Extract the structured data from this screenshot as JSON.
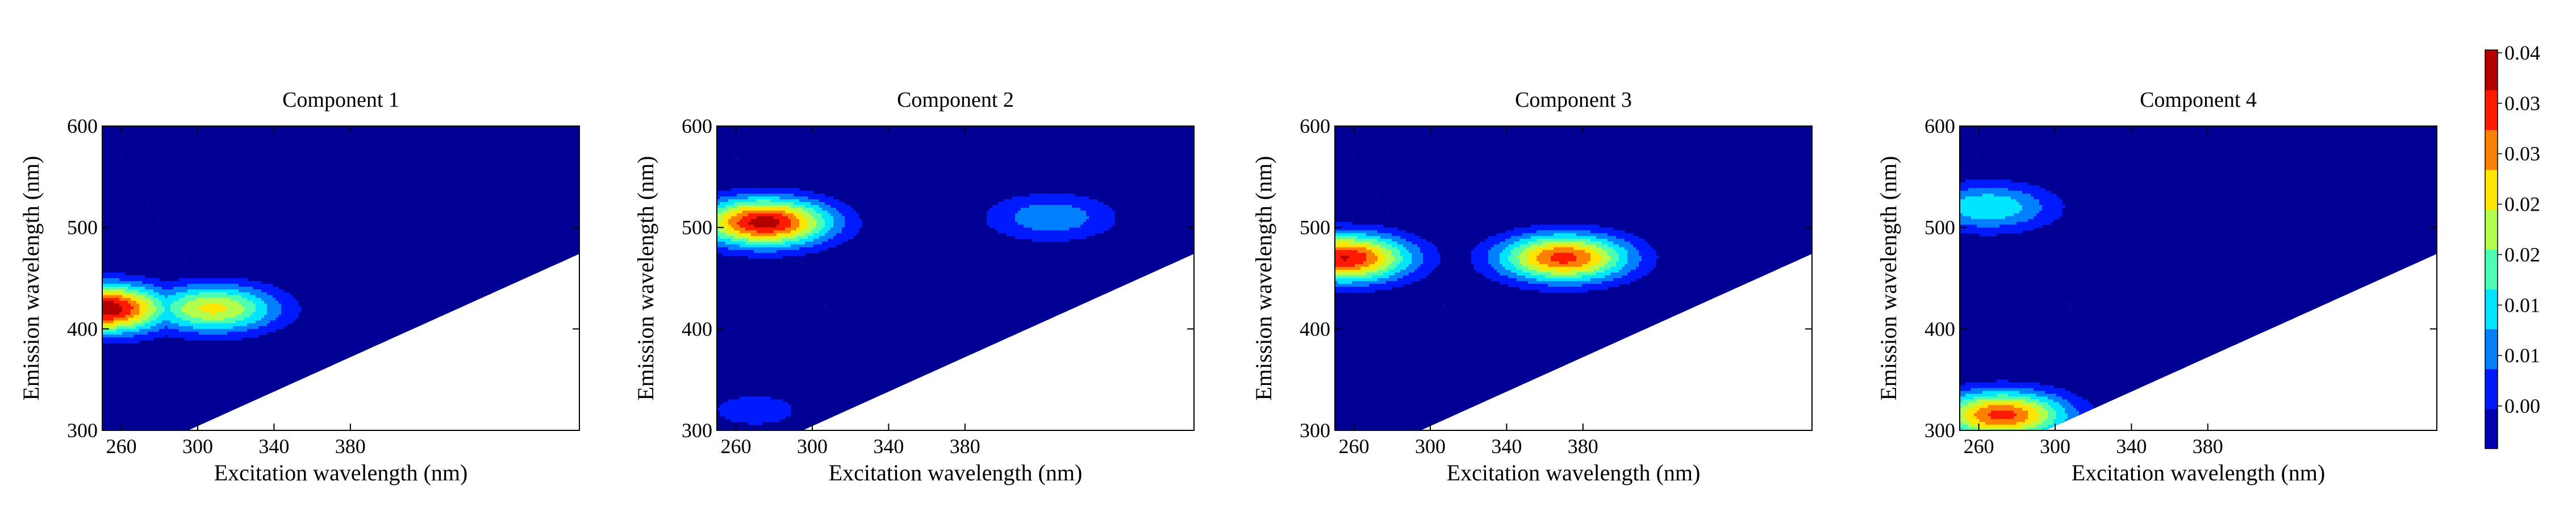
{
  "chart_data": [
    {
      "type": "heatmap",
      "title": "Component 1",
      "xlabel": "Excitation wavelength (nm)",
      "ylabel": "Emission wavelength (nm)",
      "xlim": [
        250,
        500
      ],
      "ylim": [
        300,
        600
      ],
      "xticks": [
        "260",
        "300",
        "340",
        "380"
      ],
      "yticks": [
        "300",
        "400",
        "500",
        "600"
      ],
      "peaks": [
        {
          "ex": 250,
          "em": 420,
          "intensity": 0.043
        },
        {
          "ex": 308,
          "em": 420,
          "intensity": 0.027
        }
      ]
    },
    {
      "type": "heatmap",
      "title": "Component 2",
      "xlabel": "Excitation wavelength (nm)",
      "ylabel": "Emission wavelength (nm)",
      "xlim": [
        250,
        500
      ],
      "ylim": [
        300,
        600
      ],
      "xticks": [
        "260",
        "300",
        "340",
        "380"
      ],
      "yticks": [
        "300",
        "400",
        "500",
        "600"
      ],
      "peaks": [
        {
          "ex": 275,
          "em": 505,
          "intensity": 0.041
        },
        {
          "ex": 425,
          "em": 510,
          "intensity": 0.012
        },
        {
          "ex": 270,
          "em": 320,
          "intensity": 0.006
        }
      ]
    },
    {
      "type": "heatmap",
      "title": "Component 3",
      "xlabel": "Excitation wavelength (nm)",
      "ylabel": "Emission wavelength (nm)",
      "xlim": [
        250,
        500
      ],
      "ylim": [
        300,
        600
      ],
      "xticks": [
        "260",
        "300",
        "340",
        "380"
      ],
      "yticks": [
        "300",
        "400",
        "500",
        "600"
      ],
      "peaks": [
        {
          "ex": 255,
          "em": 470,
          "intensity": 0.039
        },
        {
          "ex": 370,
          "em": 470,
          "intensity": 0.036
        }
      ]
    },
    {
      "type": "heatmap",
      "title": "Component 4",
      "xlabel": "Excitation wavelength (nm)",
      "ylabel": "Emission wavelength (nm)",
      "xlim": [
        250,
        500
      ],
      "ylim": [
        300,
        600
      ],
      "xticks": [
        "260",
        "300",
        "340",
        "380"
      ],
      "yticks": [
        "300",
        "400",
        "500",
        "600"
      ],
      "peaks": [
        {
          "ex": 272,
          "em": 315,
          "intensity": 0.036
        },
        {
          "ex": 265,
          "em": 520,
          "intensity": 0.017
        }
      ]
    }
  ],
  "colorbar": {
    "min": 0.0,
    "max": 0.043,
    "tick_labels": [
      "0.04",
      "0.03",
      "0.03",
      "0.02",
      "0.02",
      "0.01",
      "0.01",
      "0.00"
    ],
    "colormap": "jet",
    "levels": 10
  }
}
